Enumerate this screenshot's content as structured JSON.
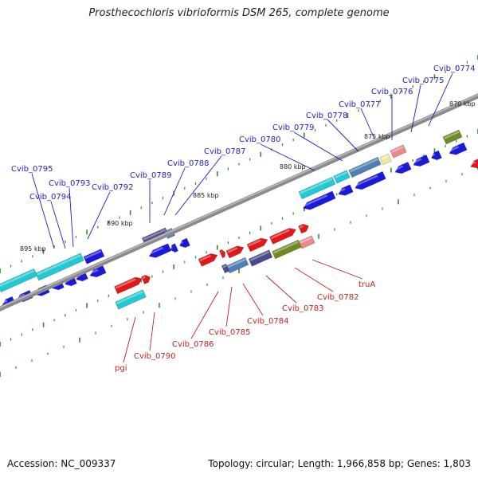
{
  "title": "Prosthecochloris vibrioformis DSM 265, complete genome",
  "footer": {
    "accession": "Accession: NC_009337",
    "summary": "Topology: circular; Length: 1,966,858 bp; Genes: 1,803"
  },
  "colors": {
    "backbone": "#8a8a8a",
    "tick": "#2e8b2e",
    "label_blue": "#1d1dc8",
    "label_red": "#c81d1d",
    "gene_blue": "#1a1adb",
    "gene_cyan": "#22c8d2",
    "gene_red": "#e01818",
    "gene_slate": "#4a4a8c",
    "gene_steel": "#4f7fb5",
    "gene_olive": "#6e8a22",
    "gene_pink": "#e88a8a",
    "gene_yellow": "#f2e6a0"
  },
  "scale_labels": [
    "870 kbp",
    "875 kbp",
    "880 kbp",
    "885 kbp",
    "890 kbp",
    "895 kbp"
  ],
  "gene_labels_top": [
    "Cvib_0774",
    "Cvib_0775",
    "Cvib_0776",
    "Cvib_0777",
    "Cvib_0778",
    "Cvib_0779",
    "Cvib_0780",
    "Cvib_0787",
    "Cvib_0788",
    "Cvib_0789",
    "Cvib_0792",
    "Cvib_0793",
    "Cvib_0794",
    "Cvib_0795"
  ],
  "gene_labels_bottom": [
    "truA",
    "Cvib_0782",
    "Cvib_0783",
    "Cvib_0784",
    "Cvib_0785",
    "Cvib_0786",
    "Cvib_0790",
    "pgi"
  ]
}
